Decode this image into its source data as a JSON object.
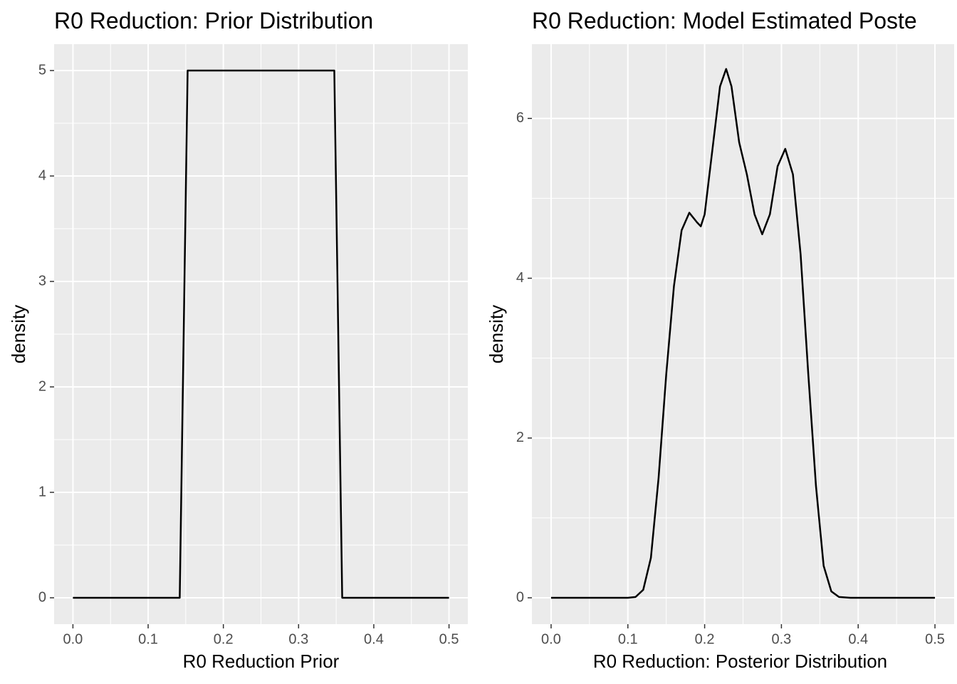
{
  "chart_data": [
    {
      "type": "line",
      "title": "R0 Reduction: Prior Distribution",
      "x_label": "R0 Reduction Prior",
      "y_label": "density",
      "x": [
        0,
        0.142,
        0.1525,
        0.3475,
        0.358,
        0.5
      ],
      "values": [
        0,
        0,
        5,
        5,
        0,
        0
      ],
      "color": "#000000",
      "xlim": [
        -0.025,
        0.525
      ],
      "xticks": [
        {
          "value": 0,
          "label": "0.0"
        },
        0.1,
        0.2,
        0.3,
        0.4,
        0.5
      ],
      "ylim": [
        -0.25,
        5.25
      ],
      "yticks": [
        0,
        1,
        2,
        3,
        4,
        5
      ],
      "grid": true
    },
    {
      "type": "line",
      "title": "R0 Reduction: Model Estimated Poste",
      "x_label": "R0 Reduction: Posterior Distribution",
      "y_label": "density",
      "x": [
        0,
        0.1,
        0.11,
        0.12,
        0.13,
        0.14,
        0.15,
        0.16,
        0.17,
        0.18,
        0.19,
        0.195,
        0.2,
        0.21,
        0.22,
        0.228,
        0.235,
        0.245,
        0.255,
        0.265,
        0.275,
        0.285,
        0.295,
        0.305,
        0.315,
        0.325,
        0.335,
        0.345,
        0.355,
        0.365,
        0.375,
        0.39,
        0.5
      ],
      "values": [
        0,
        0,
        0.01,
        0.1,
        0.5,
        1.5,
        2.8,
        3.9,
        4.6,
        4.82,
        4.7,
        4.65,
        4.8,
        5.6,
        6.4,
        6.62,
        6.4,
        5.7,
        5.3,
        4.8,
        4.55,
        4.8,
        5.4,
        5.62,
        5.3,
        4.3,
        2.8,
        1.4,
        0.4,
        0.08,
        0.01,
        0,
        0
      ],
      "color": "#000000",
      "xlim": [
        -0.025,
        0.525
      ],
      "xticks": [
        {
          "value": 0,
          "label": "0.0"
        },
        0.1,
        0.2,
        0.3,
        0.4,
        0.5
      ],
      "ylim": [
        -0.33,
        6.93
      ],
      "yticks": [
        0,
        2,
        4,
        6
      ],
      "grid": true
    }
  ]
}
